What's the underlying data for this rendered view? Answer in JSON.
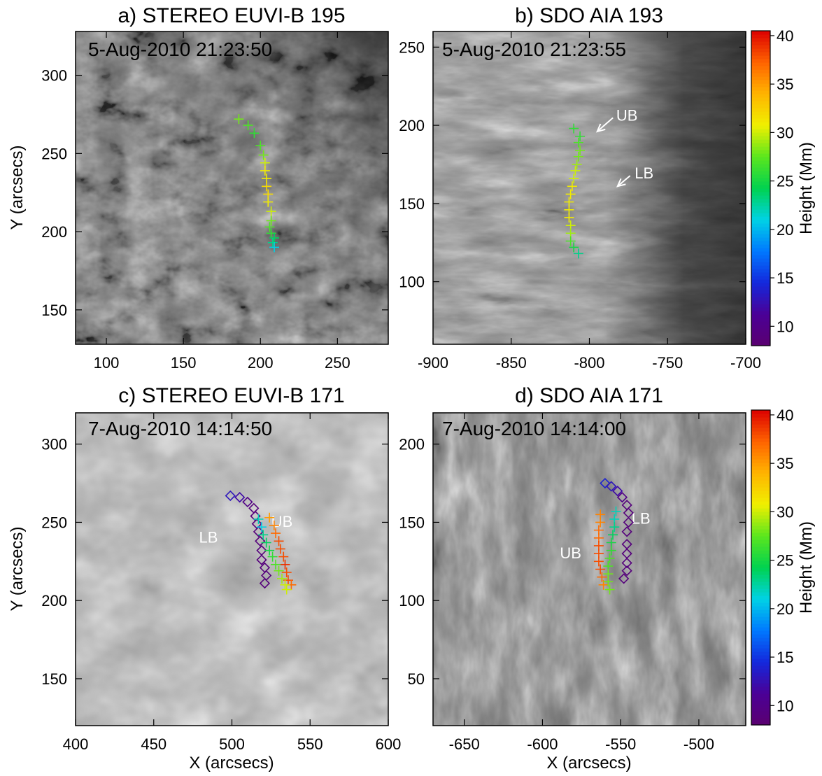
{
  "panels": [
    {
      "id": "a",
      "title": "a) STEREO EUVI-B 195",
      "timestamp": "5-Aug-2010 21:23:50",
      "xlim": [
        80,
        283
      ],
      "ylim": [
        128,
        328
      ],
      "xticks": [
        100,
        150,
        200,
        250
      ],
      "yticks": [
        150,
        200,
        250,
        300
      ],
      "xlabel": "",
      "ylabel": "Y (arcsecs)",
      "annotations": [],
      "crosses": [
        {
          "x": 186,
          "y": 272,
          "h": 28
        },
        {
          "x": 192,
          "y": 268,
          "h": 27
        },
        {
          "x": 196,
          "y": 263,
          "h": 26
        },
        {
          "x": 200,
          "y": 255,
          "h": 27
        },
        {
          "x": 202,
          "y": 249,
          "h": 28
        },
        {
          "x": 203,
          "y": 244,
          "h": 30
        },
        {
          "x": 203,
          "y": 239,
          "h": 31
        },
        {
          "x": 204,
          "y": 234,
          "h": 31
        },
        {
          "x": 204,
          "y": 229,
          "h": 32
        },
        {
          "x": 205,
          "y": 224,
          "h": 32
        },
        {
          "x": 205,
          "y": 219,
          "h": 31
        },
        {
          "x": 207,
          "y": 213,
          "h": 30
        },
        {
          "x": 207,
          "y": 207,
          "h": 28
        },
        {
          "x": 206,
          "y": 203,
          "h": 27
        },
        {
          "x": 207,
          "y": 199,
          "h": 26
        },
        {
          "x": 209,
          "y": 196,
          "h": 24
        },
        {
          "x": 208,
          "y": 193,
          "h": 23
        },
        {
          "x": 209,
          "y": 190,
          "h": 21
        }
      ],
      "diamonds": []
    },
    {
      "id": "b",
      "title": "b) SDO AIA 193",
      "timestamp": "5-Aug-2010 21:23:55",
      "xlim": [
        -900,
        -700
      ],
      "ylim": [
        60,
        260
      ],
      "xticks": [
        -900,
        -850,
        -800,
        -750,
        -700
      ],
      "yticks": [
        100,
        150,
        200,
        250
      ],
      "xlabel": "",
      "ylabel": "",
      "annotations": [
        {
          "text": "UB",
          "x": -776,
          "y": 203,
          "ax": -795,
          "ay": 196
        },
        {
          "text": "LB",
          "x": -765,
          "y": 166,
          "ax": -782,
          "ay": 161
        }
      ],
      "crosses": [
        {
          "x": -810,
          "y": 198,
          "h": 26
        },
        {
          "x": -806,
          "y": 193,
          "h": 26
        },
        {
          "x": -807,
          "y": 189,
          "h": 27
        },
        {
          "x": -806,
          "y": 184,
          "h": 28
        },
        {
          "x": -807,
          "y": 180,
          "h": 28
        },
        {
          "x": -808,
          "y": 175,
          "h": 29
        },
        {
          "x": -809,
          "y": 171,
          "h": 30
        },
        {
          "x": -810,
          "y": 166,
          "h": 30
        },
        {
          "x": -811,
          "y": 161,
          "h": 31
        },
        {
          "x": -812,
          "y": 156,
          "h": 31
        },
        {
          "x": -813,
          "y": 151,
          "h": 31
        },
        {
          "x": -813,
          "y": 146,
          "h": 31
        },
        {
          "x": -813,
          "y": 141,
          "h": 31
        },
        {
          "x": -812,
          "y": 136,
          "h": 30
        },
        {
          "x": -812,
          "y": 131,
          "h": 29
        },
        {
          "x": -812,
          "y": 126,
          "h": 27
        },
        {
          "x": -810,
          "y": 122,
          "h": 25
        },
        {
          "x": -807,
          "y": 118,
          "h": 23
        }
      ],
      "diamonds": []
    },
    {
      "id": "c",
      "title": "c) STEREO EUVI-B 171",
      "timestamp": "7-Aug-2010 14:14:50",
      "xlim": [
        400,
        600
      ],
      "ylim": [
        120,
        320
      ],
      "xticks": [
        400,
        450,
        500,
        550,
        600
      ],
      "yticks": [
        150,
        200,
        250,
        300
      ],
      "xlabel": "X (arcsecs)",
      "ylabel": "Y (arcsecs)",
      "annotations": [
        {
          "text": "LB",
          "x": 485,
          "y": 237
        },
        {
          "text": "UB",
          "x": 532,
          "y": 247
        }
      ],
      "crosses": [
        {
          "x": 524,
          "y": 253,
          "h": 35
        },
        {
          "x": 527,
          "y": 248,
          "h": 36
        },
        {
          "x": 528,
          "y": 243,
          "h": 37
        },
        {
          "x": 530,
          "y": 238,
          "h": 38
        },
        {
          "x": 531,
          "y": 233,
          "h": 38
        },
        {
          "x": 533,
          "y": 228,
          "h": 38
        },
        {
          "x": 534,
          "y": 223,
          "h": 39
        },
        {
          "x": 535,
          "y": 218,
          "h": 38
        },
        {
          "x": 536,
          "y": 213,
          "h": 38
        },
        {
          "x": 538,
          "y": 210,
          "h": 37
        },
        {
          "x": 517,
          "y": 252,
          "h": 22
        },
        {
          "x": 519,
          "y": 247,
          "h": 21
        },
        {
          "x": 520,
          "y": 242,
          "h": 23
        },
        {
          "x": 522,
          "y": 237,
          "h": 24
        },
        {
          "x": 524,
          "y": 232,
          "h": 25
        },
        {
          "x": 526,
          "y": 228,
          "h": 26
        },
        {
          "x": 528,
          "y": 223,
          "h": 27
        },
        {
          "x": 530,
          "y": 219,
          "h": 28
        },
        {
          "x": 532,
          "y": 214,
          "h": 29
        },
        {
          "x": 534,
          "y": 210,
          "h": 30
        },
        {
          "x": 535,
          "y": 207,
          "h": 30
        }
      ],
      "diamonds": [
        {
          "x": 499,
          "y": 267,
          "h": 13
        },
        {
          "x": 505,
          "y": 266,
          "h": 12
        },
        {
          "x": 510,
          "y": 263,
          "h": 10
        },
        {
          "x": 514,
          "y": 259,
          "h": 9
        },
        {
          "x": 515,
          "y": 254,
          "h": 9
        },
        {
          "x": 516,
          "y": 249,
          "h": 9
        },
        {
          "x": 517,
          "y": 244,
          "h": 9
        },
        {
          "x": 518,
          "y": 238,
          "h": 9
        },
        {
          "x": 519,
          "y": 232,
          "h": 9
        },
        {
          "x": 519,
          "y": 226,
          "h": 9
        },
        {
          "x": 521,
          "y": 221,
          "h": 9
        },
        {
          "x": 522,
          "y": 216,
          "h": 9
        },
        {
          "x": 521,
          "y": 211,
          "h": 9
        }
      ]
    },
    {
      "id": "d",
      "title": "d) SDO AIA 171",
      "timestamp": "7-Aug-2010 14:14:00",
      "xlim": [
        -670,
        -470
      ],
      "ylim": [
        20,
        220
      ],
      "xticks": [
        -650,
        -600,
        -550,
        -500
      ],
      "yticks": [
        50,
        100,
        150,
        200
      ],
      "xlabel": "X (arcsecs)",
      "ylabel": "",
      "annotations": [
        {
          "text": "LB",
          "x": -537,
          "y": 149
        },
        {
          "text": "UB",
          "x": -582,
          "y": 127
        }
      ],
      "crosses": [
        {
          "x": -563,
          "y": 155,
          "h": 36
        },
        {
          "x": -563,
          "y": 150,
          "h": 36
        },
        {
          "x": -564,
          "y": 145,
          "h": 37
        },
        {
          "x": -564,
          "y": 140,
          "h": 37
        },
        {
          "x": -564,
          "y": 135,
          "h": 38
        },
        {
          "x": -564,
          "y": 130,
          "h": 38
        },
        {
          "x": -564,
          "y": 125,
          "h": 38
        },
        {
          "x": -563,
          "y": 120,
          "h": 38
        },
        {
          "x": -562,
          "y": 115,
          "h": 37
        },
        {
          "x": -561,
          "y": 110,
          "h": 36
        },
        {
          "x": -553,
          "y": 157,
          "h": 22
        },
        {
          "x": -554,
          "y": 152,
          "h": 22
        },
        {
          "x": -554,
          "y": 147,
          "h": 23
        },
        {
          "x": -555,
          "y": 142,
          "h": 24
        },
        {
          "x": -556,
          "y": 137,
          "h": 25
        },
        {
          "x": -556,
          "y": 132,
          "h": 26
        },
        {
          "x": -557,
          "y": 127,
          "h": 27
        },
        {
          "x": -558,
          "y": 122,
          "h": 27
        },
        {
          "x": -558,
          "y": 117,
          "h": 28
        },
        {
          "x": -558,
          "y": 112,
          "h": 28
        },
        {
          "x": -557,
          "y": 107,
          "h": 28
        }
      ],
      "diamonds": [
        {
          "x": -560,
          "y": 175,
          "h": 14
        },
        {
          "x": -556,
          "y": 173,
          "h": 13
        },
        {
          "x": -552,
          "y": 170,
          "h": 12
        },
        {
          "x": -549,
          "y": 166,
          "h": 10
        },
        {
          "x": -546,
          "y": 161,
          "h": 9
        },
        {
          "x": -545,
          "y": 156,
          "h": 9
        },
        {
          "x": -545,
          "y": 150,
          "h": 9
        },
        {
          "x": -546,
          "y": 144,
          "h": 9
        },
        {
          "x": -546,
          "y": 136,
          "h": 9
        },
        {
          "x": -546,
          "y": 130,
          "h": 9
        },
        {
          "x": -546,
          "y": 124,
          "h": 9
        },
        {
          "x": -546,
          "y": 119,
          "h": 9
        },
        {
          "x": -548,
          "y": 114,
          "h": 9
        }
      ]
    }
  ],
  "colorbars": [
    {
      "label": "Height (Mm)",
      "range": [
        8,
        40.5
      ],
      "ticks": [
        10,
        15,
        20,
        25,
        30,
        35,
        40
      ]
    },
    {
      "label": "Height (Mm)",
      "range": [
        8,
        40.5
      ],
      "ticks": [
        10,
        15,
        20,
        25,
        30,
        35,
        40
      ]
    }
  ],
  "colors": {
    "annotation": "#ffffff",
    "colormap_stops": [
      "#5a0070",
      "#4b0096",
      "#1428dc",
      "#0078ff",
      "#00d2e6",
      "#00d250",
      "#5ae61e",
      "#f0f000",
      "#ffb400",
      "#ff6400",
      "#dc0000"
    ]
  }
}
